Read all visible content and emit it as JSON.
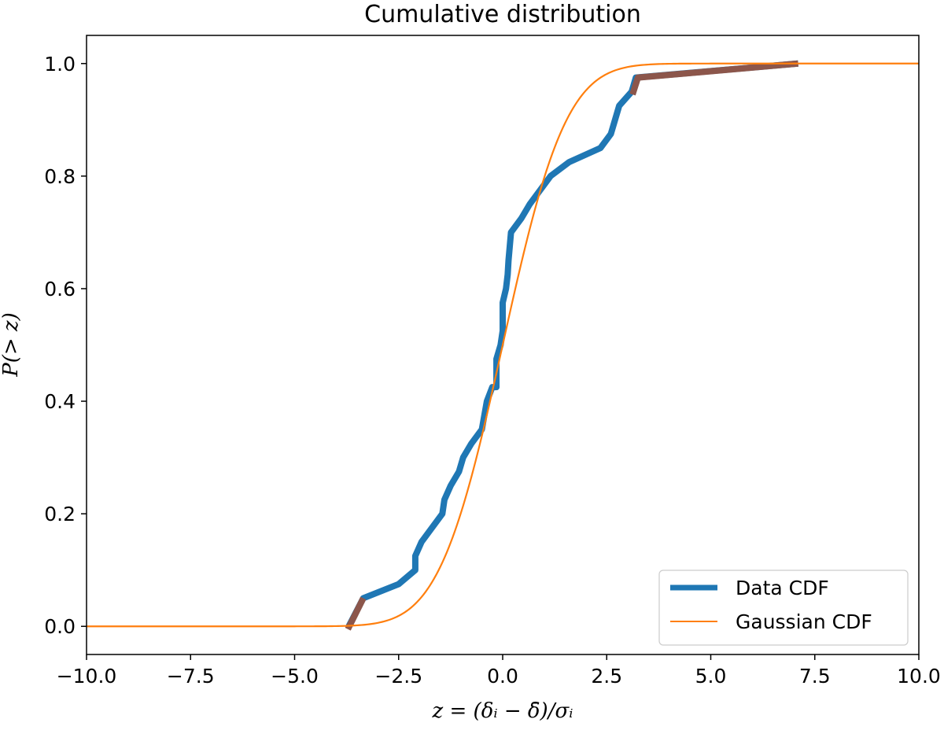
{
  "chart_data": {
    "type": "line",
    "title": "Cumulative distribution",
    "xlabel": "z = (δᵢ − δ̄)/σᵢ",
    "ylabel": "P(> z)",
    "xlim": [
      -10,
      10
    ],
    "ylim": [
      -0.05,
      1.05
    ],
    "xticks": [
      -10,
      -7.5,
      -5,
      -2.5,
      0,
      2.5,
      5,
      7.5,
      10
    ],
    "xtick_labels": [
      "−10.0",
      "−7.5",
      "−5.0",
      "−2.5",
      "0.0",
      "2.5",
      "5.0",
      "7.5",
      "10.0"
    ],
    "yticks": [
      0,
      0.2,
      0.4,
      0.6,
      0.8,
      1.0
    ],
    "ytick_labels": [
      "0.0",
      "0.2",
      "0.4",
      "0.6",
      "0.8",
      "1.0"
    ],
    "grid": false,
    "legend_position": "bottom-right",
    "series": [
      {
        "name": "Data CDF",
        "color": "#1f77b4",
        "tail_color": "#8c564b",
        "points": [
          [
            -3.7,
            0.0
          ],
          [
            -3.35,
            0.05
          ],
          [
            -2.5,
            0.075
          ],
          [
            -2.1,
            0.1
          ],
          [
            -2.1,
            0.125
          ],
          [
            -1.95,
            0.15
          ],
          [
            -1.7,
            0.175
          ],
          [
            -1.45,
            0.2
          ],
          [
            -1.4,
            0.225
          ],
          [
            -1.25,
            0.25
          ],
          [
            -1.05,
            0.275
          ],
          [
            -0.95,
            0.3
          ],
          [
            -0.75,
            0.325
          ],
          [
            -0.5,
            0.35
          ],
          [
            -0.38,
            0.4
          ],
          [
            -0.25,
            0.425
          ],
          [
            -0.15,
            0.425
          ],
          [
            -0.15,
            0.475
          ],
          [
            -0.05,
            0.5
          ],
          [
            0.0,
            0.525
          ],
          [
            0.0,
            0.575
          ],
          [
            0.08,
            0.6
          ],
          [
            0.12,
            0.625
          ],
          [
            0.14,
            0.65
          ],
          [
            0.17,
            0.675
          ],
          [
            0.2,
            0.7
          ],
          [
            0.45,
            0.725
          ],
          [
            0.65,
            0.75
          ],
          [
            0.9,
            0.775
          ],
          [
            1.15,
            0.8
          ],
          [
            1.6,
            0.825
          ],
          [
            2.35,
            0.85
          ],
          [
            2.6,
            0.875
          ],
          [
            2.8,
            0.925
          ],
          [
            3.1,
            0.95
          ],
          [
            3.2,
            0.975
          ],
          [
            7.1,
            1.0
          ]
        ],
        "tail_segments": [
          [
            [
              -3.72,
              -0.005
            ],
            [
              -3.35,
              0.05
            ]
          ],
          [
            [
              3.12,
              0.945
            ],
            [
              3.25,
              0.975
            ],
            [
              7.1,
              1.0
            ]
          ]
        ]
      },
      {
        "name": "Gaussian CDF",
        "color": "#ff7f0e",
        "mean": 0.0,
        "sigma": 1.2,
        "x_range": [
          -10,
          10
        ]
      }
    ]
  }
}
